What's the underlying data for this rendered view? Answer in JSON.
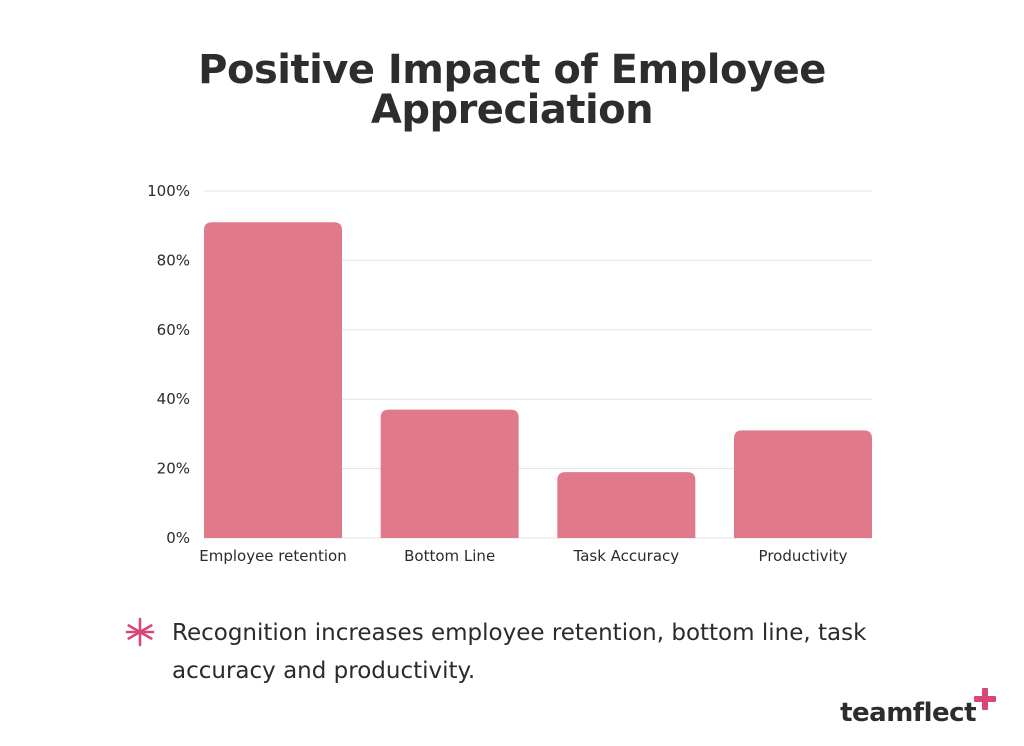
{
  "chart_data": {
    "type": "bar",
    "title": "Positive Impact of Employee\nAppreciation",
    "categories": [
      "Employee retention",
      "Bottom Line",
      "Task Accuracy",
      "Productivity"
    ],
    "values": [
      91,
      37,
      19,
      31
    ],
    "ylim": [
      0,
      100
    ],
    "yticks": [
      0,
      20,
      40,
      60,
      80,
      100
    ],
    "ytick_labels": [
      "0%",
      "20%",
      "40%",
      "60%",
      "80%",
      "100%"
    ],
    "xlabel": "",
    "ylabel": "",
    "grid": true,
    "bar_color": "#e07a8b",
    "grid_color": "#e3e3e3"
  },
  "note": {
    "icon": "asterisk-icon",
    "icon_color": "#d9477a",
    "text": "Recognition increases employee retention, bottom line, task accuracy and productivity."
  },
  "brand": {
    "name": "teamflect",
    "icon": "plus-mark-icon",
    "accent": "#d9477a"
  }
}
